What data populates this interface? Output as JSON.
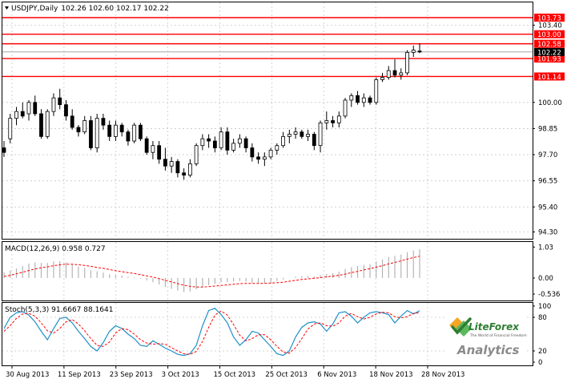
{
  "main": {
    "symbol": "USDJPY",
    "timeframe": "Daily",
    "ohlc": "102.26 102.60 102.17 102.22",
    "price_axis": [
      "103.40",
      "100.00",
      "98.85",
      "97.70",
      "96.55",
      "95.40",
      "94.30"
    ],
    "price_range": [
      94.0,
      104.4
    ],
    "last_price": "102.22",
    "levels": [
      {
        "label": "103.73",
        "value": 103.73
      },
      {
        "label": "103.00",
        "value": 103.0
      },
      {
        "label": "102.58",
        "value": 102.58
      },
      {
        "label": "101.93",
        "value": 101.93
      },
      {
        "label": "101.14",
        "value": 101.14
      }
    ],
    "candles": [
      [
        98.0,
        98.3,
        97.6,
        97.8
      ],
      [
        98.4,
        99.5,
        98.2,
        99.3
      ],
      [
        99.3,
        99.8,
        99.0,
        99.6
      ],
      [
        99.6,
        100.0,
        99.3,
        99.4
      ],
      [
        99.5,
        100.1,
        99.2,
        100.0
      ],
      [
        100.0,
        100.3,
        99.4,
        99.5
      ],
      [
        99.5,
        99.7,
        98.4,
        98.5
      ],
      [
        98.5,
        99.7,
        98.4,
        99.6
      ],
      [
        99.6,
        100.4,
        99.4,
        100.2
      ],
      [
        100.2,
        100.6,
        99.7,
        99.9
      ],
      [
        99.9,
        100.1,
        99.2,
        99.4
      ],
      [
        99.4,
        99.7,
        98.8,
        98.9
      ],
      [
        98.9,
        99.0,
        98.5,
        98.7
      ],
      [
        98.7,
        99.4,
        98.6,
        99.2
      ],
      [
        99.2,
        99.4,
        97.9,
        98.0
      ],
      [
        98.0,
        99.5,
        97.8,
        99.3
      ],
      [
        99.3,
        99.5,
        98.8,
        99.0
      ],
      [
        99.0,
        99.2,
        98.3,
        98.5
      ],
      [
        98.5,
        99.2,
        98.3,
        99.0
      ],
      [
        99.0,
        99.1,
        98.5,
        98.7
      ],
      [
        98.7,
        98.8,
        98.1,
        98.3
      ],
      [
        98.3,
        99.1,
        98.2,
        99.0
      ],
      [
        99.0,
        99.1,
        98.3,
        98.4
      ],
      [
        98.4,
        98.5,
        97.7,
        97.8
      ],
      [
        97.8,
        98.3,
        97.5,
        98.1
      ],
      [
        98.1,
        98.3,
        97.3,
        97.5
      ],
      [
        97.5,
        98.0,
        97.0,
        97.2
      ],
      [
        97.2,
        97.6,
        96.9,
        97.4
      ],
      [
        97.4,
        97.5,
        96.7,
        96.9
      ],
      [
        96.9,
        97.1,
        96.6,
        96.8
      ],
      [
        96.8,
        97.5,
        96.7,
        97.3
      ],
      [
        97.3,
        98.2,
        97.2,
        98.1
      ],
      [
        98.1,
        98.6,
        97.9,
        98.4
      ],
      [
        98.4,
        98.6,
        98.0,
        98.3
      ],
      [
        98.3,
        98.5,
        97.8,
        98.0
      ],
      [
        98.0,
        98.9,
        97.9,
        98.7
      ],
      [
        98.7,
        98.9,
        97.7,
        97.9
      ],
      [
        97.9,
        98.4,
        97.8,
        98.2
      ],
      [
        98.2,
        98.6,
        98.0,
        98.4
      ],
      [
        98.4,
        98.5,
        97.8,
        98.0
      ],
      [
        98.0,
        98.2,
        97.4,
        97.6
      ],
      [
        97.6,
        97.8,
        97.3,
        97.5
      ],
      [
        97.5,
        97.8,
        97.2,
        97.6
      ],
      [
        97.6,
        98.0,
        97.5,
        97.9
      ],
      [
        97.9,
        98.2,
        97.7,
        98.1
      ],
      [
        98.1,
        98.7,
        98.0,
        98.5
      ],
      [
        98.5,
        98.8,
        98.2,
        98.6
      ],
      [
        98.6,
        98.9,
        98.4,
        98.7
      ],
      [
        98.7,
        98.8,
        98.4,
        98.5
      ],
      [
        98.5,
        98.8,
        98.3,
        98.6
      ],
      [
        98.6,
        98.7,
        97.9,
        98.1
      ],
      [
        98.1,
        99.2,
        97.8,
        99.1
      ],
      [
        99.1,
        99.6,
        98.8,
        99.2
      ],
      [
        99.2,
        99.4,
        98.9,
        99.1
      ],
      [
        99.1,
        99.6,
        98.9,
        99.4
      ],
      [
        99.4,
        100.2,
        99.3,
        100.1
      ],
      [
        100.1,
        100.4,
        99.8,
        100.3
      ],
      [
        100.3,
        100.5,
        99.9,
        100.0
      ],
      [
        100.0,
        100.4,
        99.8,
        100.2
      ],
      [
        100.2,
        100.3,
        99.9,
        100.0
      ],
      [
        100.0,
        101.1,
        99.9,
        101.0
      ],
      [
        101.0,
        101.3,
        100.9,
        101.1
      ],
      [
        101.1,
        101.6,
        101.0,
        101.4
      ],
      [
        101.4,
        101.9,
        101.1,
        101.2
      ],
      [
        101.2,
        101.5,
        101.0,
        101.3
      ],
      [
        101.3,
        102.3,
        101.2,
        102.2
      ],
      [
        102.2,
        102.5,
        102.0,
        102.3
      ],
      [
        102.26,
        102.6,
        102.17,
        102.22
      ]
    ]
  },
  "macd": {
    "title": "MACD(12,26,9) 0.958 0.727",
    "axis": [
      "1.03",
      "0.00",
      "-0.536"
    ],
    "range": [
      -0.75,
      1.2
    ],
    "histogram": [
      0.2,
      0.25,
      0.32,
      0.4,
      0.48,
      0.52,
      0.5,
      0.5,
      0.55,
      0.56,
      0.52,
      0.45,
      0.38,
      0.34,
      0.26,
      0.22,
      0.18,
      0.12,
      0.1,
      0.08,
      0.04,
      0.02,
      -0.02,
      -0.08,
      -0.14,
      -0.22,
      -0.3,
      -0.36,
      -0.42,
      -0.47,
      -0.45,
      -0.38,
      -0.3,
      -0.24,
      -0.2,
      -0.14,
      -0.14,
      -0.12,
      -0.1,
      -0.12,
      -0.16,
      -0.18,
      -0.18,
      -0.15,
      -0.1,
      -0.05,
      0.0,
      0.04,
      0.06,
      0.07,
      0.05,
      0.09,
      0.13,
      0.16,
      0.21,
      0.3,
      0.36,
      0.4,
      0.44,
      0.46,
      0.55,
      0.62,
      0.7,
      0.74,
      0.78,
      0.86,
      0.92,
      0.958
    ],
    "signal": [
      0.05,
      0.09,
      0.14,
      0.19,
      0.25,
      0.3,
      0.34,
      0.37,
      0.41,
      0.44,
      0.46,
      0.46,
      0.44,
      0.42,
      0.39,
      0.35,
      0.32,
      0.28,
      0.24,
      0.21,
      0.18,
      0.15,
      0.11,
      0.07,
      0.03,
      -0.02,
      -0.08,
      -0.13,
      -0.19,
      -0.24,
      -0.28,
      -0.3,
      -0.3,
      -0.29,
      -0.27,
      -0.25,
      -0.23,
      -0.21,
      -0.19,
      -0.18,
      -0.18,
      -0.18,
      -0.18,
      -0.17,
      -0.16,
      -0.14,
      -0.11,
      -0.08,
      -0.05,
      -0.03,
      -0.01,
      0.01,
      0.04,
      0.06,
      0.09,
      0.13,
      0.18,
      0.22,
      0.27,
      0.31,
      0.36,
      0.41,
      0.47,
      0.52,
      0.57,
      0.63,
      0.68,
      0.727
    ]
  },
  "stoch": {
    "title": "Stoch(5,3,3) 91.6667 88.1641",
    "axis": [
      "100",
      "80",
      "20",
      "0"
    ],
    "range": [
      0,
      100
    ],
    "k": [
      60,
      80,
      88,
      90,
      84,
      72,
      55,
      40,
      60,
      78,
      80,
      70,
      55,
      42,
      28,
      20,
      35,
      55,
      65,
      60,
      50,
      42,
      30,
      28,
      38,
      32,
      25,
      20,
      14,
      12,
      15,
      30,
      65,
      92,
      96,
      85,
      70,
      45,
      30,
      40,
      55,
      52,
      40,
      28,
      15,
      12,
      20,
      45,
      62,
      70,
      72,
      68,
      55,
      68,
      88,
      90,
      82,
      70,
      80,
      88,
      90,
      88,
      85,
      70,
      82,
      92,
      86,
      91.6667
    ],
    "d": [
      55,
      65,
      78,
      86,
      87,
      82,
      70,
      56,
      52,
      60,
      72,
      76,
      68,
      56,
      42,
      30,
      28,
      36,
      52,
      60,
      58,
      50,
      40,
      34,
      32,
      33,
      32,
      26,
      20,
      15,
      14,
      19,
      37,
      62,
      84,
      91,
      84,
      67,
      48,
      38,
      42,
      49,
      49,
      40,
      28,
      18,
      16,
      26,
      42,
      59,
      68,
      70,
      65,
      64,
      70,
      82,
      87,
      81,
      77,
      80,
      86,
      89,
      88,
      81,
      79,
      81,
      87,
      88.1641
    ]
  },
  "x_axis": [
    "30 Aug 2013",
    "11 Sep 2013",
    "23 Sep 2013",
    "3 Oct 2013",
    "15 Oct 2013",
    "25 Oct 2013",
    "6 Nov 2013",
    "18 Nov 2013",
    "28 Nov 2013"
  ],
  "colors": {
    "level_line": "#ff0000",
    "grid": "#c8c8c8",
    "macd_hist": "#b4b4b4",
    "macd_signal": "#ff0000",
    "stoch_main": "#1e90c8",
    "stoch_signal": "#ff0000",
    "axis_tag_bg": "#ff0000",
    "last_tag_bg": "#000000"
  },
  "logo": {
    "brand": "LiteForex",
    "tagline": "The World of Financial Freedom",
    "product": "Analytics"
  }
}
